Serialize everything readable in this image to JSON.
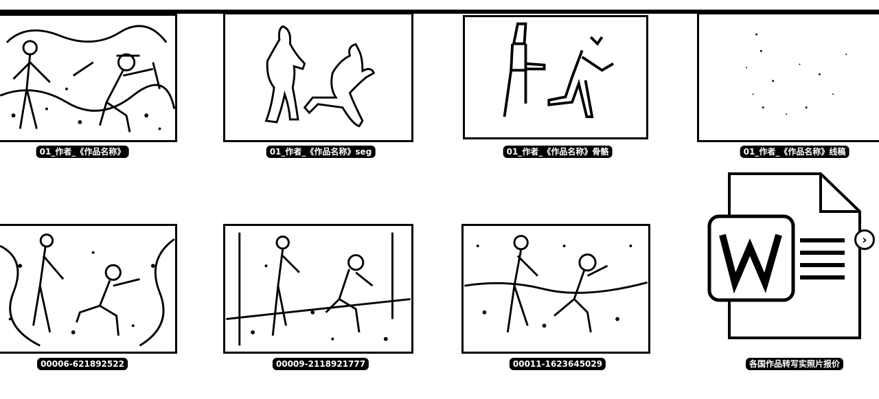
{
  "files": [
    {
      "name": "01_作者_《作品名称》",
      "kind": "photo-sketch"
    },
    {
      "name": "01_作者_《作品名称》seg",
      "kind": "silhouette-outline"
    },
    {
      "name": "01_作者_《作品名称》骨骼",
      "kind": "stick-figure"
    },
    {
      "name": "01_作者_《作品名称》线稿",
      "kind": "blank-sparse"
    },
    {
      "name": "00006-621892522",
      "kind": "photo-sketch"
    },
    {
      "name": "00009-2118921777",
      "kind": "photo-sketch"
    },
    {
      "name": "00011-1623645029",
      "kind": "photo-sketch"
    },
    {
      "name": "各国作品转写实照片报价",
      "kind": "word-document"
    }
  ],
  "icons": {
    "doc": "word-document-icon",
    "next": "chevron-right-icon"
  }
}
